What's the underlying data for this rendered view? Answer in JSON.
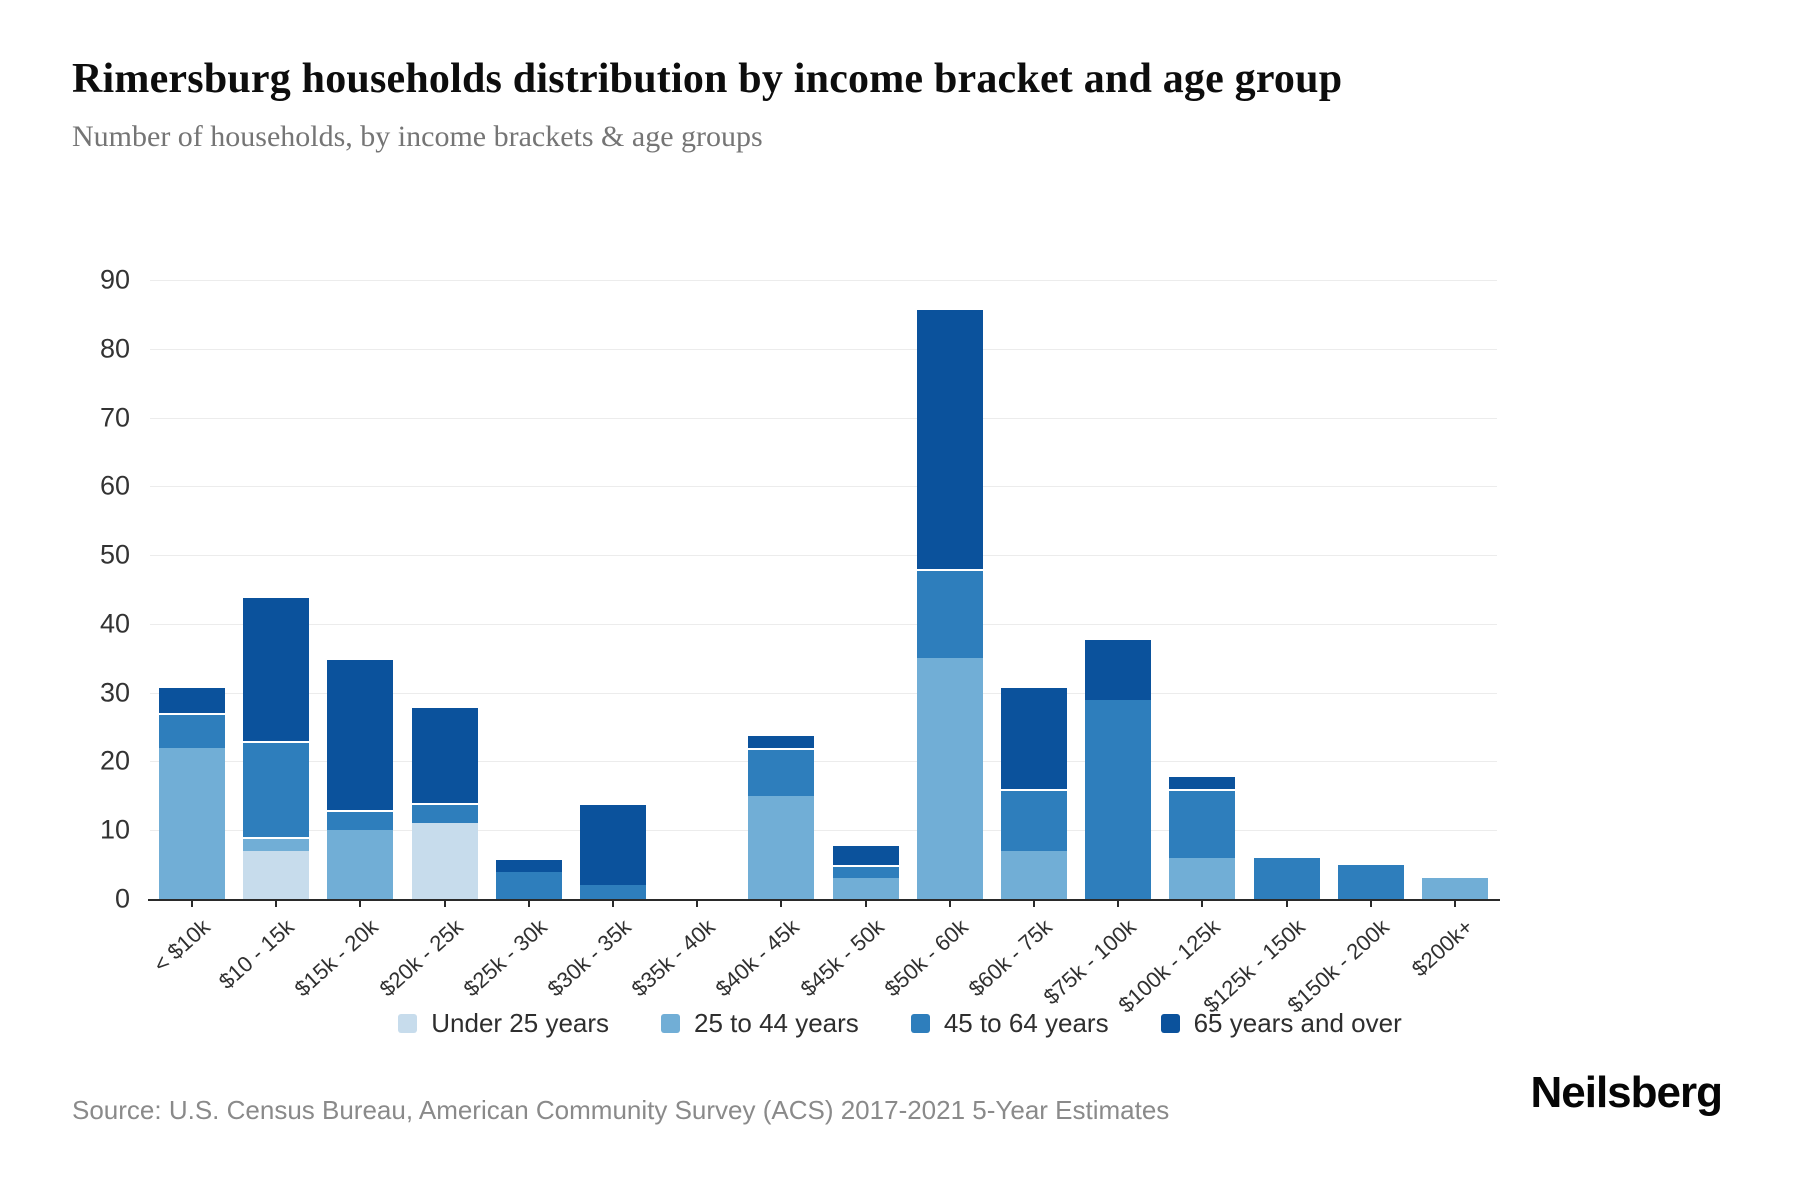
{
  "header": {
    "title": "Rimersburg households distribution by income bracket and age group",
    "subtitle": "Number of households, by income brackets & age groups"
  },
  "footer": {
    "source": "Source: U.S. Census Bureau, American Community Survey (ACS) 2017-2021 5-Year Estimates",
    "logo": "Neilsberg"
  },
  "chart_data": {
    "type": "bar",
    "stacked": true,
    "title": "Rimersburg households distribution by income bracket and age group",
    "xlabel": "",
    "ylabel": "Number of households",
    "ylim": [
      0,
      90
    ],
    "ytick_step": 10,
    "grid": true,
    "legend_position": "bottom",
    "categories": [
      "< $10k",
      "$10 - 15k",
      "$15k - 20k",
      "$20k - 25k",
      "$25k - 30k",
      "$30k - 35k",
      "$35k - 40k",
      "$40k - 45k",
      "$45k - 50k",
      "$50k - 60k",
      "$60k - 75k",
      "$75k - 100k",
      "$100k - 125k",
      "$125k - 150k",
      "$150k - 200k",
      "$200k+"
    ],
    "series": [
      {
        "name": "Under 25 years",
        "color": "#c7dcec",
        "values": [
          0,
          7,
          0,
          11,
          0,
          0,
          0,
          0,
          0,
          0,
          0,
          0,
          0,
          0,
          0,
          0
        ]
      },
      {
        "name": "25 to 44 years",
        "color": "#71aed6",
        "values": [
          22,
          2,
          10,
          0,
          0,
          0,
          0,
          15,
          3,
          35,
          7,
          0,
          6,
          0,
          0,
          3
        ]
      },
      {
        "name": "45 to 64 years",
        "color": "#2e7ebc",
        "values": [
          5,
          14,
          3,
          3,
          4,
          2,
          0,
          7,
          2,
          13,
          9,
          29,
          10,
          6,
          5,
          0
        ]
      },
      {
        "name": "65 years and over",
        "color": "#0b529c",
        "values": [
          4,
          21,
          22,
          14,
          2,
          12,
          0,
          2,
          3,
          38,
          15,
          9,
          2,
          0,
          0,
          0
        ]
      }
    ],
    "totals": [
      31,
      44,
      35,
      28,
      6,
      14,
      0,
      24,
      8,
      86,
      31,
      38,
      18,
      6,
      5,
      3
    ]
  }
}
